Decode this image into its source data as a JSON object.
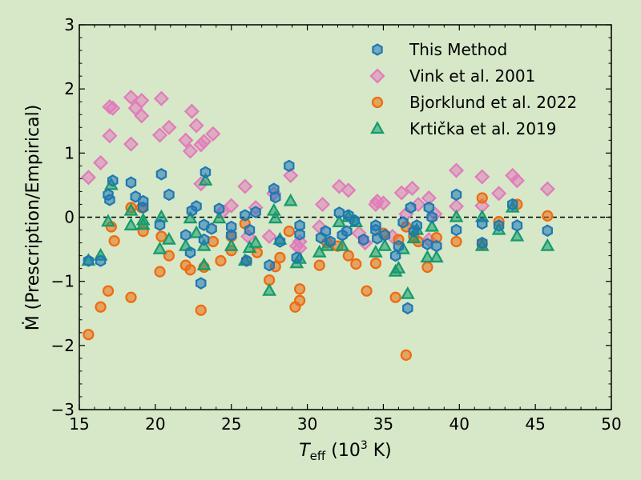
{
  "chart_data": {
    "type": "scatter",
    "title": "",
    "xlabel": {
      "main": "T",
      "sub": "eff",
      "rest": " (10",
      "sup": "3",
      "end": " K)"
    },
    "ylabel": "Ṁ (Prescription/Empirical)",
    "xlim": [
      15,
      50
    ],
    "ylim": [
      -3,
      3
    ],
    "xticks": [
      "15",
      "20",
      "25",
      "30",
      "35",
      "40",
      "45",
      "50"
    ],
    "yticks": [
      "−3",
      "−2",
      "−1",
      "0",
      "1",
      "2",
      "3"
    ],
    "reference_line": {
      "y": 0,
      "style": "dashed"
    },
    "legend_position": "top-right",
    "series": [
      {
        "name": "This Method",
        "marker": "hexagon",
        "color": "#1f77b4",
        "points": [
          [
            15.6,
            -0.68
          ],
          [
            16.4,
            -0.68
          ],
          [
            16.9,
            0.35
          ],
          [
            17.0,
            0.27
          ],
          [
            17.2,
            0.57
          ],
          [
            18.4,
            0.54
          ],
          [
            18.7,
            0.32
          ],
          [
            19.2,
            0.25
          ],
          [
            19.2,
            0.15
          ],
          [
            20.4,
            0.67
          ],
          [
            20.3,
            -0.12
          ],
          [
            20.9,
            0.35
          ],
          [
            22.0,
            -0.28
          ],
          [
            22.3,
            -0.55
          ],
          [
            22.4,
            0.1
          ],
          [
            22.7,
            0.17
          ],
          [
            23.0,
            -1.03
          ],
          [
            23.2,
            -0.12
          ],
          [
            23.2,
            -0.35
          ],
          [
            23.3,
            0.7
          ],
          [
            23.7,
            -0.18
          ],
          [
            24.2,
            0.13
          ],
          [
            25.0,
            -0.15
          ],
          [
            25.0,
            -0.28
          ],
          [
            25.9,
            0.03
          ],
          [
            26.0,
            -0.68
          ],
          [
            26.2,
            -0.2
          ],
          [
            26.6,
            0.08
          ],
          [
            27.5,
            -0.75
          ],
          [
            27.8,
            0.44
          ],
          [
            27.9,
            0.31
          ],
          [
            28.2,
            -0.38
          ],
          [
            28.8,
            0.8
          ],
          [
            29.3,
            -0.63
          ],
          [
            29.5,
            -0.13
          ],
          [
            29.5,
            -0.27
          ],
          [
            30.9,
            -0.32
          ],
          [
            31.2,
            -0.22
          ],
          [
            31.5,
            -0.38
          ],
          [
            32.1,
            0.07
          ],
          [
            32.3,
            -0.28
          ],
          [
            32.6,
            -0.22
          ],
          [
            32.7,
            0.03
          ],
          [
            33.1,
            -0.05
          ],
          [
            33.7,
            -0.35
          ],
          [
            34.5,
            -0.13
          ],
          [
            34.6,
            -0.33
          ],
          [
            34.5,
            -0.2
          ],
          [
            35.1,
            -0.28
          ],
          [
            35.8,
            -0.6
          ],
          [
            36.0,
            -0.45
          ],
          [
            36.3,
            -0.08
          ],
          [
            36.6,
            -1.42
          ],
          [
            36.8,
            0.15
          ],
          [
            37.0,
            -0.22
          ],
          [
            37.2,
            -0.13
          ],
          [
            37.9,
            -0.42
          ],
          [
            38.0,
            0.15
          ],
          [
            38.2,
            0.0
          ],
          [
            38.5,
            -0.45
          ],
          [
            39.8,
            0.35
          ],
          [
            39.8,
            -0.2
          ],
          [
            41.5,
            -0.1
          ],
          [
            41.5,
            -0.4
          ],
          [
            42.6,
            -0.13
          ],
          [
            43.5,
            0.2
          ],
          [
            43.8,
            -0.13
          ],
          [
            45.8,
            -0.21
          ]
        ]
      },
      {
        "name": "Vink et al. 2001",
        "marker": "diamond",
        "color": "#e17cba",
        "points": [
          [
            15.6,
            0.62
          ],
          [
            16.4,
            0.85
          ],
          [
            17.0,
            1.72
          ],
          [
            17.2,
            1.7
          ],
          [
            17.0,
            1.27
          ],
          [
            18.4,
            1.87
          ],
          [
            18.7,
            1.7
          ],
          [
            19.1,
            1.82
          ],
          [
            19.1,
            1.58
          ],
          [
            18.4,
            1.14
          ],
          [
            20.4,
            1.85
          ],
          [
            20.3,
            1.28
          ],
          [
            20.9,
            1.4
          ],
          [
            22.0,
            1.2
          ],
          [
            22.3,
            1.03
          ],
          [
            22.4,
            1.65
          ],
          [
            22.7,
            1.43
          ],
          [
            23.0,
            1.13
          ],
          [
            23.2,
            1.18
          ],
          [
            23.8,
            1.3
          ],
          [
            23.0,
            0.52
          ],
          [
            24.4,
            0.08
          ],
          [
            25.0,
            0.18
          ],
          [
            25.9,
            0.48
          ],
          [
            26.1,
            -0.3
          ],
          [
            26.6,
            0.15
          ],
          [
            27.5,
            -0.3
          ],
          [
            27.8,
            0.37
          ],
          [
            28.9,
            0.65
          ],
          [
            29.3,
            -0.45
          ],
          [
            29.5,
            -0.38
          ],
          [
            29.5,
            -0.48
          ],
          [
            30.8,
            -0.15
          ],
          [
            31.0,
            0.2
          ],
          [
            32.1,
            0.48
          ],
          [
            32.7,
            0.42
          ],
          [
            33.4,
            -0.25
          ],
          [
            33.8,
            -0.4
          ],
          [
            34.6,
            0.25
          ],
          [
            34.5,
            0.2
          ],
          [
            35.0,
            0.22
          ],
          [
            35.6,
            -0.3
          ],
          [
            36.2,
            0.38
          ],
          [
            36.5,
            0.05
          ],
          [
            36.9,
            0.45
          ],
          [
            37.3,
            0.2
          ],
          [
            38.0,
            0.3
          ],
          [
            38.4,
            0.05
          ],
          [
            38.0,
            -0.35
          ],
          [
            39.8,
            0.73
          ],
          [
            39.8,
            0.17
          ],
          [
            41.5,
            0.63
          ],
          [
            41.5,
            0.18
          ],
          [
            42.6,
            0.37
          ],
          [
            43.5,
            0.65
          ],
          [
            43.8,
            0.57
          ],
          [
            45.8,
            0.44
          ]
        ]
      },
      {
        "name": "Bjorklund et al. 2022",
        "marker": "circle",
        "color": "#ef6a0e",
        "points": [
          [
            15.6,
            -1.83
          ],
          [
            16.4,
            -1.4
          ],
          [
            16.9,
            -1.15
          ],
          [
            17.1,
            -0.15
          ],
          [
            17.3,
            -0.37
          ],
          [
            18.4,
            -1.25
          ],
          [
            18.4,
            0.15
          ],
          [
            19.1,
            0.15
          ],
          [
            19.2,
            -0.22
          ],
          [
            20.3,
            -0.85
          ],
          [
            20.4,
            -0.3
          ],
          [
            20.9,
            -0.6
          ],
          [
            22.0,
            -0.75
          ],
          [
            22.3,
            -0.82
          ],
          [
            23.0,
            -1.45
          ],
          [
            23.2,
            -0.78
          ],
          [
            23.8,
            -0.38
          ],
          [
            24.3,
            -0.68
          ],
          [
            25.0,
            -0.52
          ],
          [
            25.0,
            -0.3
          ],
          [
            25.9,
            -0.1
          ],
          [
            26.0,
            -0.68
          ],
          [
            26.7,
            -0.55
          ],
          [
            27.5,
            -0.98
          ],
          [
            27.9,
            -0.77
          ],
          [
            28.2,
            -0.63
          ],
          [
            28.8,
            -0.22
          ],
          [
            29.2,
            -1.4
          ],
          [
            29.5,
            -1.12
          ],
          [
            29.5,
            -1.3
          ],
          [
            30.8,
            -0.75
          ],
          [
            31.3,
            -0.4
          ],
          [
            32.0,
            -0.45
          ],
          [
            32.7,
            -0.6
          ],
          [
            33.2,
            -0.73
          ],
          [
            33.9,
            -1.15
          ],
          [
            34.5,
            -0.72
          ],
          [
            35.0,
            -0.25
          ],
          [
            35.8,
            -1.25
          ],
          [
            36.0,
            -0.35
          ],
          [
            36.5,
            -0.15
          ],
          [
            36.5,
            -2.15
          ],
          [
            37.0,
            -0.3
          ],
          [
            37.3,
            -0.38
          ],
          [
            37.9,
            -0.78
          ],
          [
            38.5,
            -0.32
          ],
          [
            39.8,
            -0.38
          ],
          [
            41.5,
            0.3
          ],
          [
            41.5,
            -0.42
          ],
          [
            42.6,
            -0.07
          ],
          [
            43.8,
            0.2
          ],
          [
            45.8,
            0.02
          ]
        ]
      },
      {
        "name": "Krtička et al. 2019",
        "marker": "triangle",
        "color": "#159a6b",
        "points": [
          [
            15.6,
            -0.68
          ],
          [
            16.4,
            -0.6
          ],
          [
            16.9,
            -0.07
          ],
          [
            17.1,
            0.5
          ],
          [
            18.4,
            -0.13
          ],
          [
            18.4,
            0.1
          ],
          [
            19.2,
            -0.05
          ],
          [
            19.2,
            -0.12
          ],
          [
            20.3,
            -0.5
          ],
          [
            20.4,
            0.0
          ],
          [
            20.9,
            -0.35
          ],
          [
            22.0,
            -0.45
          ],
          [
            22.3,
            -0.02
          ],
          [
            22.7,
            -0.25
          ],
          [
            23.2,
            -0.75
          ],
          [
            23.2,
            -0.45
          ],
          [
            23.3,
            0.57
          ],
          [
            24.2,
            -0.02
          ],
          [
            25.0,
            -0.45
          ],
          [
            25.9,
            -0.68
          ],
          [
            26.2,
            -0.48
          ],
          [
            26.6,
            -0.4
          ],
          [
            27.5,
            -1.15
          ],
          [
            27.8,
            0.1
          ],
          [
            27.9,
            -0.02
          ],
          [
            28.2,
            -0.35
          ],
          [
            28.9,
            0.25
          ],
          [
            29.3,
            -0.72
          ],
          [
            29.5,
            -0.65
          ],
          [
            30.8,
            -0.55
          ],
          [
            31.3,
            -0.45
          ],
          [
            32.1,
            -0.08
          ],
          [
            32.3,
            -0.45
          ],
          [
            32.7,
            0.0
          ],
          [
            33.2,
            -0.08
          ],
          [
            34.5,
            -0.55
          ],
          [
            35.1,
            -0.45
          ],
          [
            35.8,
            -0.85
          ],
          [
            36.0,
            -0.8
          ],
          [
            36.3,
            -0.5
          ],
          [
            36.6,
            -1.2
          ],
          [
            37.0,
            -0.33
          ],
          [
            37.2,
            -0.2
          ],
          [
            37.9,
            -0.63
          ],
          [
            38.2,
            -0.15
          ],
          [
            38.5,
            -0.63
          ],
          [
            39.8,
            0.0
          ],
          [
            41.5,
            0.0
          ],
          [
            41.5,
            -0.45
          ],
          [
            42.6,
            -0.2
          ],
          [
            43.5,
            0.15
          ],
          [
            43.8,
            -0.3
          ],
          [
            45.8,
            -0.45
          ]
        ]
      }
    ]
  }
}
